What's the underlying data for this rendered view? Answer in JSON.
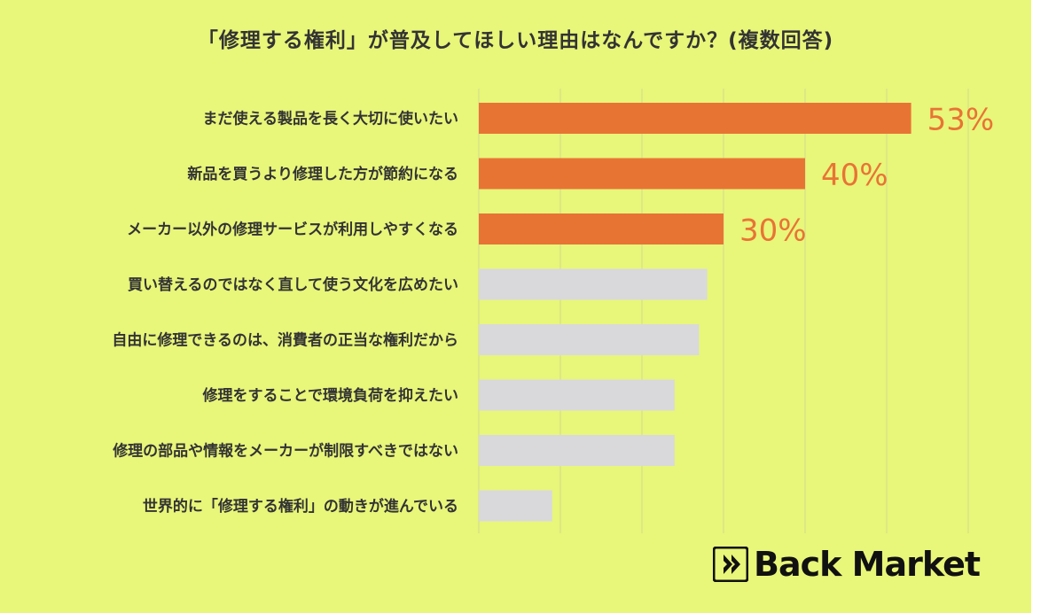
{
  "chart_data": {
    "type": "bar",
    "orientation": "horizontal",
    "title": "「修理する権利」が普及してほしい理由はなんですか？(複数回答)",
    "categories": [
      "まだ使える製品を長く大切に使いたい",
      "新品を買うより修理した方が節約になる",
      "メーカー以外の修理サービスが利用しやすくなる",
      "買い替えるのではなく直して使う文化を広めたい",
      "自由に修理できるのは、消費者の正当な権利だから",
      "修理をすることで環境負荷を抑えたい",
      "修理の部品や情報をメーカーが制限すべきではない",
      "世界的に「修理する権利」の動きが進んでいる"
    ],
    "values": [
      53,
      40,
      30,
      28,
      27,
      24,
      24,
      9
    ],
    "value_labels": [
      "53%",
      "40%",
      "30%",
      "",
      "",
      "",
      "",
      ""
    ],
    "xlim": [
      0,
      60
    ],
    "grid": true,
    "highlight_color": "#e87434",
    "muted_color": "#d9d9dc",
    "background_color": "#e8f67a"
  },
  "logo": {
    "text": "Back Market"
  }
}
